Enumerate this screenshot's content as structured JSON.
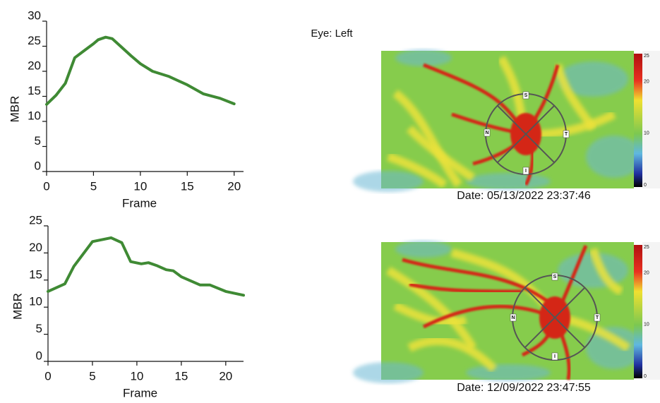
{
  "chart_data": [
    {
      "type": "line",
      "y_label": "MBR",
      "x_label": "Frame",
      "x": [
        0,
        1,
        2,
        3,
        4,
        5,
        5.5,
        6.3,
        7,
        8,
        9,
        10,
        11.3,
        13,
        15,
        16.7,
        18.5,
        20
      ],
      "series": [
        {
          "color": "#3f8a34",
          "values": [
            13.4,
            15.2,
            17.6,
            22.7,
            24.1,
            25.5,
            26.3,
            26.8,
            26.5,
            24.8,
            23.1,
            21.5,
            20,
            19,
            17.3,
            15.5,
            14.6,
            13.5
          ]
        }
      ],
      "xlim": [
        0,
        21
      ],
      "ylim": [
        0,
        30
      ],
      "xticks": [
        0,
        5,
        10,
        15,
        20
      ],
      "yticks": [
        0,
        5,
        10,
        15,
        20,
        25,
        30
      ]
    },
    {
      "type": "line",
      "y_label": "MBR",
      "x_label": "Frame",
      "x": [
        0,
        1.9,
        2.9,
        5,
        7.1,
        8.3,
        9.3,
        10.5,
        11.3,
        12.2,
        13.3,
        14.1,
        15,
        17.1,
        18.2,
        20,
        22
      ],
      "series": [
        {
          "color": "#3f8a34",
          "values": [
            12.9,
            14.3,
            17.5,
            22.1,
            22.8,
            21.9,
            18.4,
            18,
            18.2,
            17.7,
            16.9,
            16.7,
            15.6,
            14.1,
            14.1,
            12.9,
            12.2
          ]
        }
      ],
      "xlim": [
        0,
        22
      ],
      "ylim": [
        0,
        25
      ],
      "xticks": [
        0,
        5,
        10,
        15,
        20
      ],
      "yticks": [
        0,
        5,
        10,
        15,
        20,
        25
      ]
    }
  ],
  "eye_label": "Eye: Left",
  "images": [
    {
      "colorbar_ticks": [
        25,
        20,
        10,
        0
      ],
      "markers": [
        "S",
        "N",
        "T",
        "I"
      ],
      "date": "Date: 05/13/2022 23:37:46"
    },
    {
      "colorbar_ticks": [
        25,
        20,
        10,
        0
      ],
      "markers": [
        "S",
        "N",
        "T",
        "I"
      ],
      "date": "Date: 12/09/2022 23:47:55"
    }
  ]
}
